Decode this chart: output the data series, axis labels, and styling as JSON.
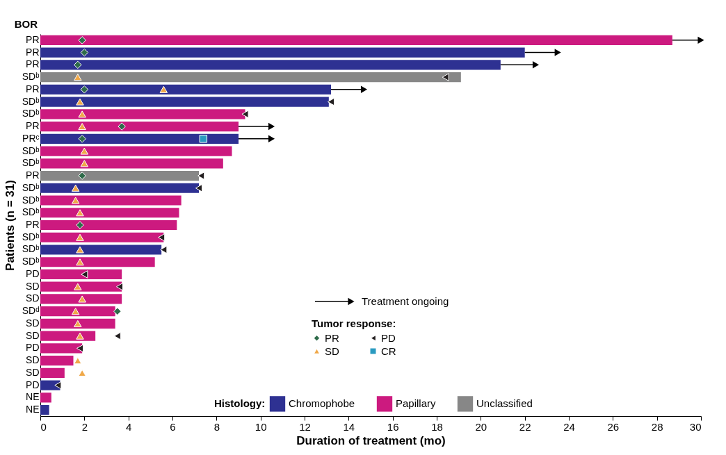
{
  "chart_data": {
    "type": "bar",
    "orientation": "horizontal",
    "xlabel": "Duration of treatment (mo)",
    "ylabel": "Patients (n = 31)",
    "legend_title": "Histology:",
    "annotations": [
      "BOR",
      "Tumor response:"
    ],
    "categories": [
      "PR",
      "PR",
      "PR",
      "SDᵇ",
      "PR",
      "SDᵇ",
      "SDᵇ",
      "PR",
      "PRᶜ",
      "SDᵇ",
      "SDᵇ",
      "PR",
      "SDᵇ",
      "SDᵇ",
      "SDᵇ",
      "PR",
      "SDᵇ",
      "SDᵇ",
      "SDᵇ",
      "PD",
      "SD",
      "SD",
      "SDᵈ",
      "SD",
      "SD",
      "PD",
      "SD",
      "SD",
      "PD",
      "NE",
      "NE"
    ],
    "xlim": [
      0,
      30
    ],
    "xticks": [
      0,
      2,
      4,
      6,
      8,
      10,
      12,
      14,
      16,
      18,
      20,
      22,
      24,
      26,
      28,
      30
    ],
    "grid": false,
    "legend": "bottom right",
    "series": [
      {
        "name": "Chromophobe",
        "color": "#2e3192",
        "values": [
          null,
          22.0,
          20.9,
          null,
          13.2,
          13.1,
          null,
          null,
          9.0,
          null,
          null,
          null,
          7.2,
          null,
          null,
          null,
          null,
          5.5,
          null,
          null,
          null,
          null,
          null,
          null,
          null,
          null,
          null,
          null,
          0.9,
          null,
          0.4
        ],
        "errors": [
          null,
          [
            22.0,
            23.5
          ],
          [
            20.9,
            22.5
          ],
          null,
          [
            13.2,
            14.7
          ],
          null,
          null,
          null,
          [
            9.0,
            10.5
          ],
          null,
          null,
          null,
          null,
          null,
          null,
          null,
          null,
          null,
          null,
          null,
          null,
          null,
          null,
          null,
          null,
          null,
          null,
          null,
          null,
          null,
          null
        ]
      },
      {
        "name": "Papillary",
        "color": "#cc1a7f",
        "values": [
          28.7,
          null,
          null,
          null,
          null,
          null,
          9.3,
          9.0,
          null,
          8.7,
          8.3,
          null,
          null,
          6.4,
          6.3,
          6.2,
          5.6,
          null,
          5.2,
          3.7,
          3.7,
          3.7,
          3.4,
          3.4,
          2.5,
          1.9,
          1.5,
          1.1,
          null,
          0.5,
          null
        ],
        "errors": [
          [
            28.7,
            30.0
          ],
          null,
          null,
          null,
          null,
          null,
          null,
          [
            9.0,
            10.5
          ],
          null,
          null,
          null,
          null,
          null,
          null,
          null,
          null,
          null,
          null,
          null,
          null,
          null,
          null,
          null,
          null,
          null,
          null,
          null,
          null,
          null,
          null,
          null
        ]
      },
      {
        "name": "Unclassified",
        "color": "#878787",
        "values": [
          null,
          null,
          null,
          19.1,
          null,
          null,
          null,
          null,
          null,
          null,
          null,
          7.2,
          null,
          null,
          null,
          null,
          null,
          null,
          null,
          null,
          null,
          null,
          null,
          null,
          null,
          null,
          null,
          null,
          null,
          null,
          null
        ]
      },
      {
        "name": "PR",
        "type": "scatter",
        "marker": "diamond",
        "color": "#2e6b4a",
        "values": [
          1.9,
          2.0,
          1.7,
          null,
          2.0,
          null,
          null,
          3.7,
          1.9,
          null,
          null,
          1.9,
          null,
          null,
          null,
          1.8,
          null,
          null,
          null,
          null,
          null,
          null,
          3.5,
          null,
          null,
          null,
          null,
          null,
          null,
          null,
          null
        ]
      },
      {
        "name": "SD",
        "type": "scatter",
        "marker": "triangle",
        "color": "#f0a848",
        "values": [
          null,
          null,
          null,
          1.7,
          5.6,
          1.8,
          1.9,
          1.9,
          null,
          2.0,
          2.0,
          null,
          1.6,
          1.6,
          1.8,
          null,
          1.8,
          1.8,
          1.8,
          null,
          1.7,
          1.9,
          1.6,
          1.7,
          1.8,
          null,
          1.7,
          1.9,
          null,
          null,
          null
        ]
      },
      {
        "name": "PD",
        "type": "scatter",
        "marker": "triangle-left",
        "color": "#231f20",
        "values": [
          null,
          null,
          null,
          18.4,
          null,
          13.2,
          9.3,
          null,
          null,
          null,
          null,
          7.3,
          7.2,
          null,
          null,
          null,
          5.5,
          5.6,
          null,
          2.0,
          3.6,
          null,
          null,
          null,
          3.5,
          1.8,
          null,
          null,
          0.8,
          null,
          null
        ]
      },
      {
        "name": "CR",
        "type": "scatter",
        "marker": "square",
        "color": "#2a9ac0",
        "values": [
          null,
          null,
          null,
          null,
          null,
          null,
          null,
          null,
          7.4,
          null,
          null,
          null,
          null,
          null,
          null,
          null,
          null,
          null,
          null,
          null,
          null,
          null,
          null,
          null,
          null,
          null,
          null,
          null,
          null,
          null,
          null
        ]
      },
      {
        "name": "Treatment ongoing",
        "type": "scatter",
        "marker": "triangle",
        "color": "#000000",
        "values": [
          30.0,
          23.5,
          22.5,
          null,
          14.7,
          null,
          null,
          10.5,
          10.5,
          null,
          null,
          null,
          null,
          null,
          null,
          null,
          null,
          null,
          null,
          null,
          null,
          null,
          null,
          null,
          null,
          null,
          null,
          null,
          null,
          null,
          null
        ]
      }
    ]
  }
}
